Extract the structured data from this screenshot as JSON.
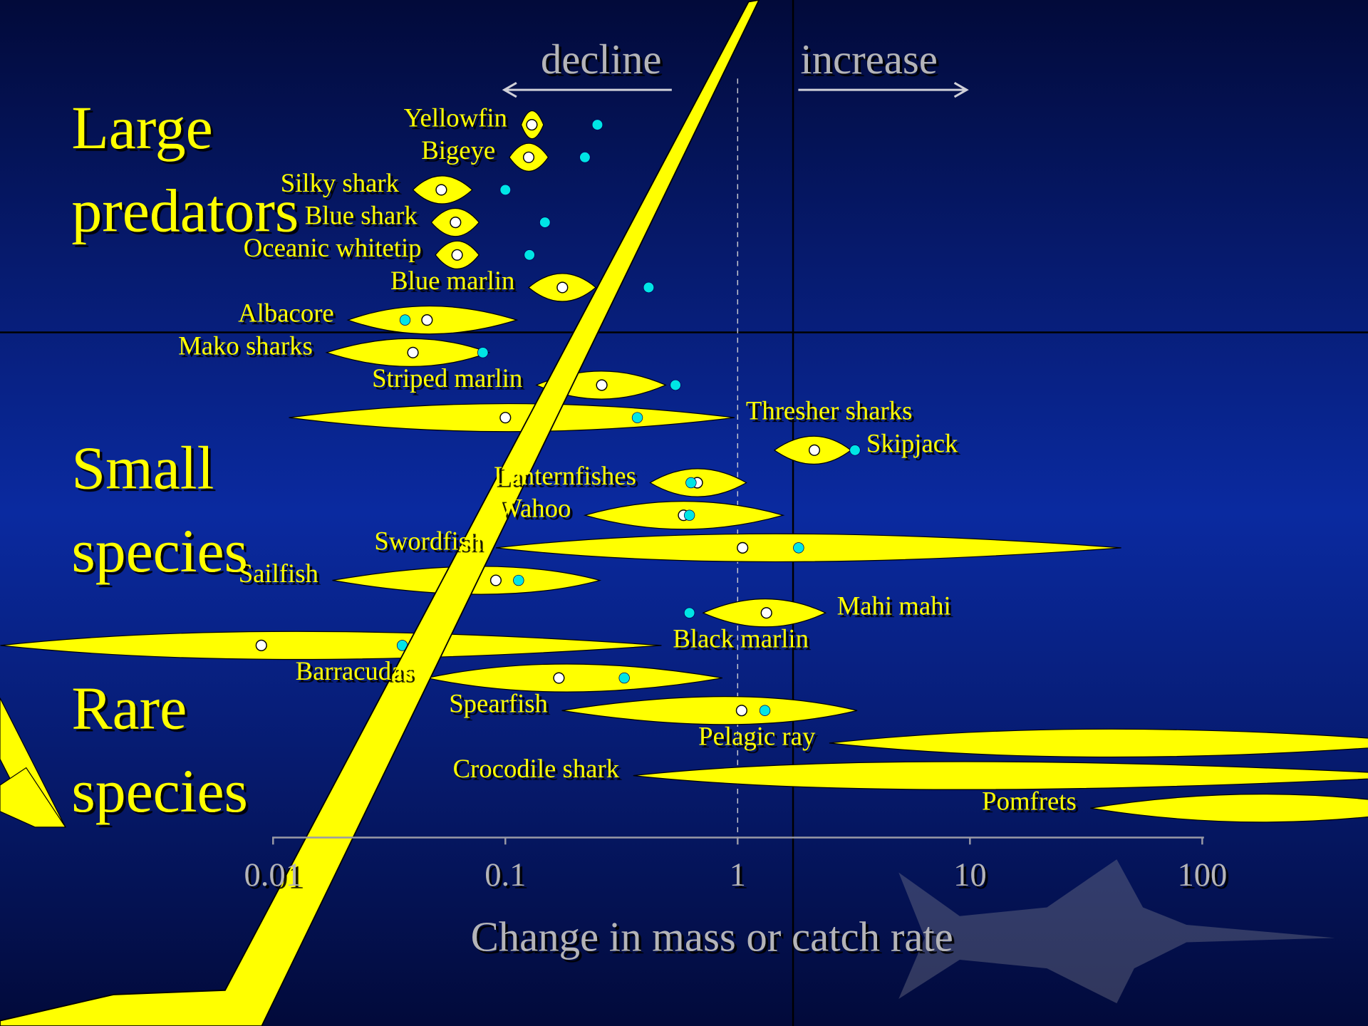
{
  "chart_data": {
    "type": "spindle",
    "x_label": "Change in mass or catch rate",
    "annotations": {
      "decline": "decline",
      "increase": "increase"
    },
    "groups": [
      {
        "lines": [
          "Large",
          "predators"
        ]
      },
      {
        "lines": [
          "Small",
          "species"
        ]
      },
      {
        "lines": [
          "Rare",
          "species"
        ]
      }
    ],
    "log_x": true,
    "xlim": [
      0.01,
      100
    ],
    "xticks": [
      0.01,
      0.1,
      1,
      10,
      100
    ],
    "reference_line": 1,
    "colors": {
      "range": "#ffff00",
      "white": "#ffffff",
      "cyan": "#00e5e5"
    },
    "species": [
      {
        "name": "Yellowfin",
        "low": 0.117,
        "high": 0.146,
        "white": 0.13,
        "cyan": 0.249,
        "label_side": "left"
      },
      {
        "name": "Bigeye",
        "low": 0.104,
        "high": 0.153,
        "white": 0.126,
        "cyan": 0.22,
        "label_side": "left"
      },
      {
        "name": "Silky shark",
        "low": 0.04,
        "high": 0.072,
        "white": 0.053,
        "cyan": 0.1,
        "label_side": "left"
      },
      {
        "name": "Blue shark",
        "low": 0.048,
        "high": 0.077,
        "white": 0.061,
        "cyan": 0.148,
        "label_side": "left"
      },
      {
        "name": "Oceanic whitetip",
        "low": 0.05,
        "high": 0.077,
        "white": 0.062,
        "cyan": 0.127,
        "label_side": "left"
      },
      {
        "name": "Blue marlin",
        "low": 0.126,
        "high": 0.245,
        "white": 0.176,
        "cyan": 0.414,
        "label_side": "left"
      },
      {
        "name": "Albacore",
        "low": 0.021,
        "high": 0.112,
        "white": 0.046,
        "cyan": 0.037,
        "label_side": "left"
      },
      {
        "name": "Mako sharks",
        "low": 0.017,
        "high": 0.085,
        "white": 0.04,
        "cyan": 0.08,
        "label_side": "left"
      },
      {
        "name": "Striped marlin",
        "low": 0.136,
        "high": 0.49,
        "white": 0.26,
        "cyan": 0.54,
        "label_side": "left"
      },
      {
        "name": "Thresher sharks",
        "low": 0.0117,
        "high": 0.97,
        "white": 0.1,
        "cyan": 0.37,
        "label_side": "right"
      },
      {
        "name": "Skipjack",
        "low": 1.44,
        "high": 3.07,
        "white": 2.14,
        "cyan": 3.2,
        "label_side": "right"
      },
      {
        "name": "Lanternfishes",
        "low": 0.42,
        "high": 1.09,
        "white": 0.67,
        "cyan": 0.63,
        "label_side": "left"
      },
      {
        "name": "Wahoo",
        "low": 0.22,
        "high": 1.57,
        "white": 0.585,
        "cyan": 0.62,
        "label_side": "left"
      },
      {
        "name": "Swordfish",
        "low": 0.091,
        "high": 44.8,
        "white": 1.05,
        "cyan": 1.83,
        "label_side": "left"
      },
      {
        "name": "Sailfish",
        "low": 0.018,
        "high": 0.255,
        "white": 0.091,
        "cyan": 0.114,
        "label_side": "left"
      },
      {
        "name": "Mahi mahi",
        "low": 0.71,
        "high": 2.39,
        "white": 1.33,
        "cyan": 0.62,
        "label_side": "right"
      },
      {
        "name": "Black marlin",
        "low": 0.00067,
        "high": 0.47,
        "white": 0.0089,
        "cyan": 0.036,
        "label_side": "right"
      },
      {
        "name": "Barracudas",
        "low": 0.046,
        "high": 0.86,
        "white": 0.17,
        "cyan": 0.325,
        "label_side": "left"
      },
      {
        "name": "Spearfish",
        "low": 0.175,
        "high": 3.27,
        "white": 1.04,
        "cyan": 1.31,
        "label_side": "left"
      },
      {
        "name": "Pelagic ray",
        "low": 2.48,
        "high": 1000,
        "white": null,
        "cyan": null,
        "label_side": "left"
      },
      {
        "name": "Crocodile shark",
        "low": 0.355,
        "high": 1000,
        "white": null,
        "cyan": null,
        "label_side": "left"
      },
      {
        "name": "Pomfrets",
        "low": 33,
        "high": 1000,
        "white": null,
        "cyan": null,
        "label_side": "left"
      }
    ]
  }
}
